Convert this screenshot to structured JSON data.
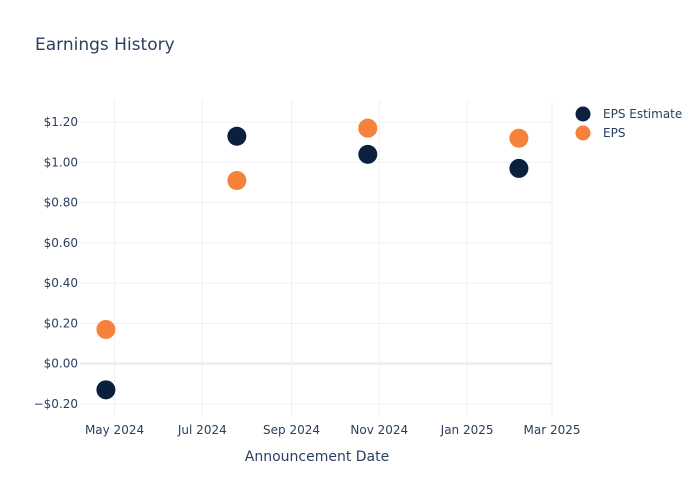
{
  "chart_data": {
    "type": "scatter",
    "title": "Earnings History",
    "xlabel": "Announcement Date",
    "ylabel": "",
    "x_tick_labels": [
      "May 2024",
      "Jul 2024",
      "Sep 2024",
      "Nov 2024",
      "Jan 2025",
      "Mar 2025"
    ],
    "x_ticks": [
      "2024-05-01",
      "2024-07-01",
      "2024-09-01",
      "2024-11-01",
      "2025-01-01",
      "2025-03-01"
    ],
    "xlim": [
      "2024-04-07",
      "2025-03-01"
    ],
    "y_tick_labels": [
      "−$0.20",
      "$0.00",
      "$0.20",
      "$0.40",
      "$0.60",
      "$0.80",
      "$1.00",
      "$1.20"
    ],
    "y_ticks": [
      -0.2,
      0,
      0.2,
      0.4,
      0.6,
      0.8,
      1.0,
      1.2
    ],
    "ylim": [
      -0.27,
      1.31
    ],
    "grid": true,
    "legend_position": "top-right",
    "series": [
      {
        "name": "EPS Estimate",
        "color": "#0b1f3f",
        "x": [
          "2024-04-25",
          "2024-07-25",
          "2024-10-24",
          "2025-02-06"
        ],
        "values": [
          -0.13,
          1.13,
          1.04,
          0.97
        ]
      },
      {
        "name": "EPS",
        "color": "#f5813a",
        "x": [
          "2024-04-25",
          "2024-07-25",
          "2024-10-24",
          "2025-02-06"
        ],
        "values": [
          0.17,
          0.91,
          1.17,
          1.12
        ]
      }
    ]
  }
}
